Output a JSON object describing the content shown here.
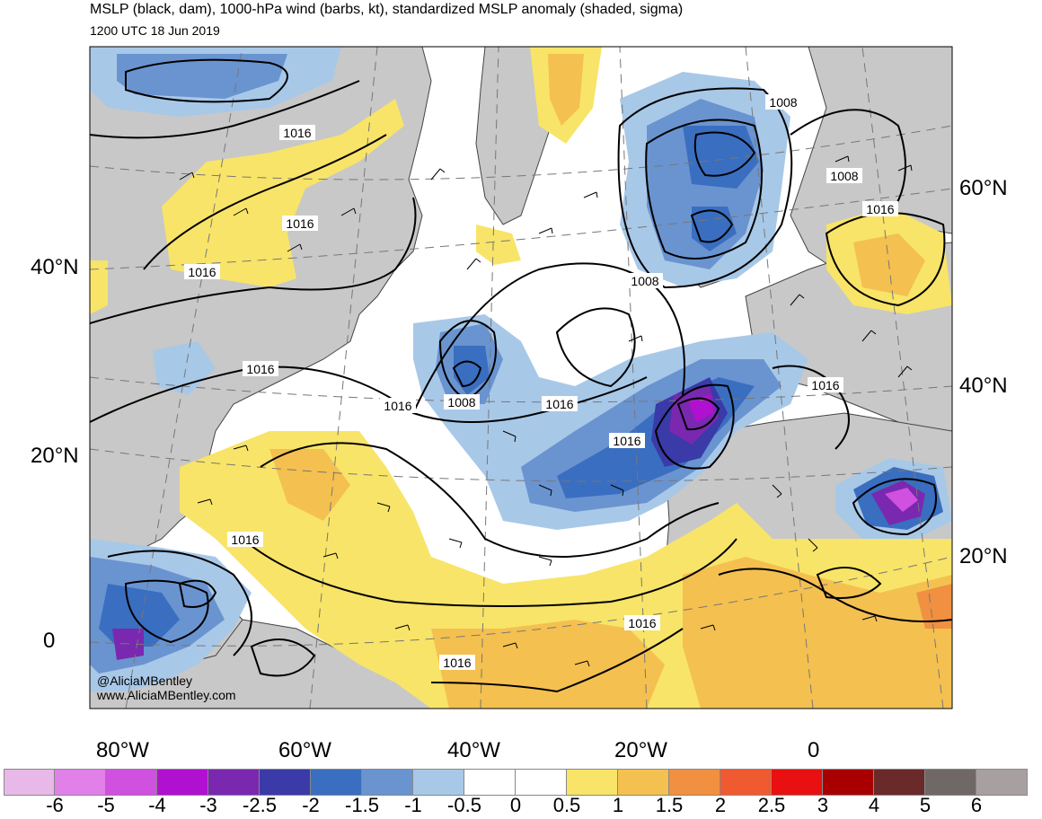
{
  "title": "MSLP (black, dam), 1000-hPa wind (barbs, kt), standardized MSLP anomaly (shaded, sigma)",
  "subtitle": "1200 UTC 18 Jun 2019",
  "credit": [
    "@AliciaMBentley",
    "www.AliciaMBentley.com"
  ],
  "lat_labels_left": [
    "40°N",
    "20°N",
    "0"
  ],
  "lat_labels_right": [
    "60°N",
    "40°N",
    "20°N"
  ],
  "lon_labels": [
    "80°W",
    "60°W",
    "40°W",
    "20°W",
    "0"
  ],
  "isobar_labels": [
    "1016",
    "1016",
    "1016",
    "1016",
    "1016",
    "1008",
    "1016",
    "1016",
    "1016",
    "1016",
    "1008",
    "1008",
    "1008",
    "1016",
    "1016",
    "1016"
  ],
  "colorbar": {
    "colors": [
      "#e8b8e8",
      "#e080e8",
      "#d050e0",
      "#b010d0",
      "#7a28b0",
      "#3a3aa8",
      "#3a6ec0",
      "#6a94d0",
      "#a8c8e8",
      "#ffffff",
      "#ffffff",
      "#f8e468",
      "#f4c050",
      "#f09040",
      "#f05a30",
      "#e81010",
      "#a80000",
      "#6a2a2a",
      "#706866",
      "#a8a0a0"
    ],
    "labels": [
      "-6",
      "-5",
      "-4",
      "-3",
      "-2.5",
      "-2",
      "-1.5",
      "-1",
      "-0.5",
      "0",
      "0.5",
      "1",
      "1.5",
      "2",
      "2.5",
      "3",
      "4",
      "5",
      "6"
    ]
  },
  "colors": {
    "land": "#c8c8c8",
    "ocean": "#ffffff",
    "isobar": "#000000",
    "graticule": "#777777"
  }
}
